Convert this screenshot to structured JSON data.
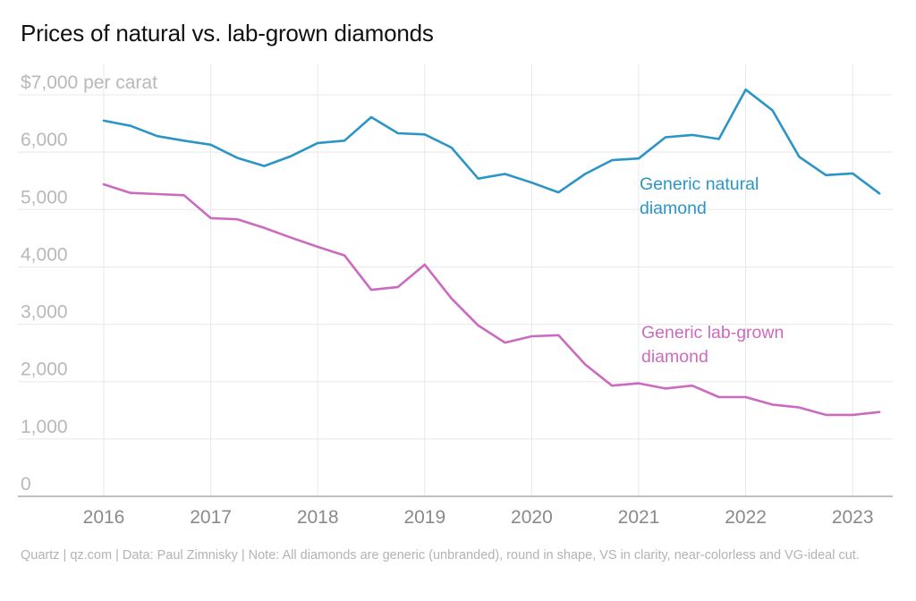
{
  "title": "Prices of natural vs. lab-grown diamonds",
  "footnote": "Quartz | qz.com | Data: Paul Zimnisky | Note: All diamonds are generic (unbranded), round in shape, VS in clarity, near-colorless and VG-ideal cut.",
  "colors": {
    "natural": "#2b95c7",
    "lab": "#cc6ac0",
    "grid": "#e8e8e8",
    "axis": "#9a9a9a"
  },
  "chart_data": {
    "type": "line",
    "title": "Prices of natural vs. lab-grown diamonds",
    "xlabel": "",
    "ylabel": "",
    "xlim": [
      2016,
      2023.25
    ],
    "ylim": [
      0,
      7000
    ],
    "grid": true,
    "x_ticks": [
      {
        "value": 2016,
        "label": "2016"
      },
      {
        "value": 2017,
        "label": "2017"
      },
      {
        "value": 2018,
        "label": "2018"
      },
      {
        "value": 2019,
        "label": "2019"
      },
      {
        "value": 2020,
        "label": "2020"
      },
      {
        "value": 2021,
        "label": "2021"
      },
      {
        "value": 2022,
        "label": "2022"
      },
      {
        "value": 2023,
        "label": "2023"
      }
    ],
    "y_ticks": [
      {
        "value": 0,
        "label": "0"
      },
      {
        "value": 1000,
        "label": "1,000"
      },
      {
        "value": 2000,
        "label": "2,000"
      },
      {
        "value": 3000,
        "label": "3,000"
      },
      {
        "value": 4000,
        "label": "4,000"
      },
      {
        "value": 5000,
        "label": "5,000"
      },
      {
        "value": 6000,
        "label": "6,000"
      },
      {
        "value": 7000,
        "label": "$7,000 per carat"
      }
    ],
    "x": [
      2016,
      2016.25,
      2016.5,
      2016.75,
      2017,
      2017.25,
      2017.5,
      2017.75,
      2018,
      2018.25,
      2018.5,
      2018.75,
      2019,
      2019.25,
      2019.5,
      2019.75,
      2020,
      2020.25,
      2020.5,
      2020.75,
      2021,
      2021.25,
      2021.5,
      2021.75,
      2022,
      2022.25,
      2022.5,
      2022.75,
      2023,
      2023.25
    ],
    "series": [
      {
        "name": "Generic natural diamond",
        "color": "#2b95c7",
        "values": [
          6550,
          6460,
          6280,
          6200,
          6130,
          5900,
          5760,
          5930,
          6160,
          6200,
          6610,
          6330,
          6310,
          6080,
          5540,
          5620,
          5470,
          5300,
          5620,
          5860,
          5890,
          6260,
          6300,
          6230,
          7090,
          6730,
          5920,
          5600,
          5630,
          5280
        ]
      },
      {
        "name": "Generic lab-grown diamond",
        "color": "#cc6ac0",
        "values": [
          5440,
          5290,
          5270,
          5250,
          4850,
          4830,
          4680,
          4510,
          4350,
          4200,
          3600,
          3650,
          4040,
          3450,
          2980,
          2680,
          2790,
          2810,
          2300,
          1930,
          1970,
          1880,
          1930,
          1730,
          1730,
          1600,
          1550,
          1420,
          1420,
          1470
        ]
      }
    ],
    "annotations": [
      {
        "series": 0,
        "lines": [
          "Generic natural",
          "diamond"
        ]
      },
      {
        "series": 1,
        "lines": [
          "Generic lab-grown",
          "diamond"
        ]
      }
    ]
  }
}
